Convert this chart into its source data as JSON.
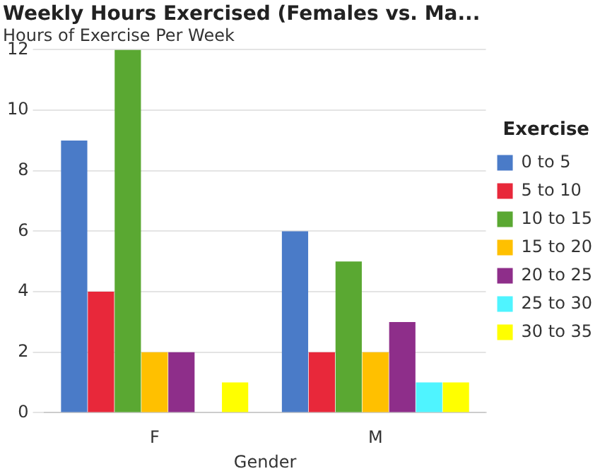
{
  "chart_data": {
    "type": "bar",
    "title": "Weekly Hours Exercised (Females vs. Ma...",
    "ylabel": "Hours of Exercise Per Week",
    "xlabel": "Gender",
    "legend_title": "Exercise",
    "categories": [
      "F",
      "M"
    ],
    "series": [
      {
        "name": "0 to 5",
        "color": "#4a7bc8",
        "values": [
          9,
          6
        ]
      },
      {
        "name": "5 to 10",
        "color": "#e8283a",
        "values": [
          4,
          2
        ]
      },
      {
        "name": "10 to 15",
        "color": "#5aa832",
        "values": [
          12,
          5
        ]
      },
      {
        "name": "15 to 20",
        "color": "#ffc000",
        "values": [
          2,
          2
        ]
      },
      {
        "name": "20 to 25",
        "color": "#8e2e8a",
        "values": [
          2,
          3
        ]
      },
      {
        "name": "25 to 30",
        "color": "#4ff4ff",
        "values": [
          0,
          1
        ]
      },
      {
        "name": "30 to 35",
        "color": "#ffff00",
        "values": [
          1,
          1
        ]
      }
    ],
    "ylim": [
      0,
      12
    ],
    "yticks": [
      0,
      2,
      4,
      6,
      8,
      10,
      12
    ],
    "grid": "y",
    "legend": "right"
  }
}
